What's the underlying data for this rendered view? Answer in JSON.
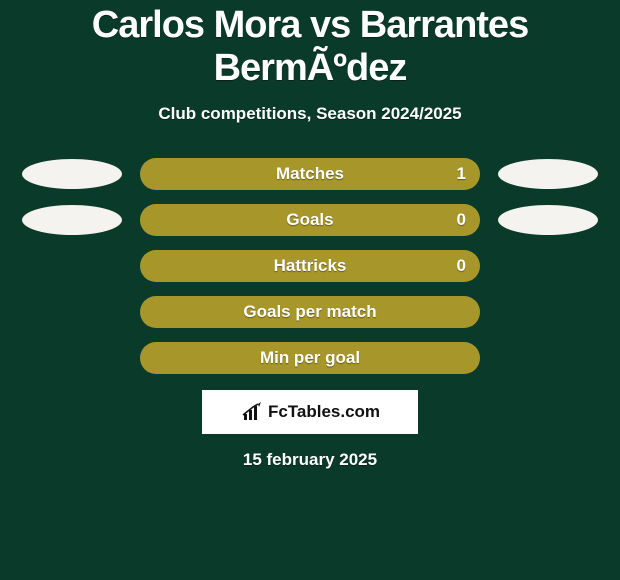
{
  "background_color": "#0a3a2a",
  "title": "Carlos Mora vs Barrantes BermÃºdez",
  "subtitle": "Club competitions, Season 2024/2025",
  "date": "15 february 2025",
  "logo_text": "FcTables.com",
  "oval_color": "#f4f3ef",
  "rows": [
    {
      "label": "Matches",
      "value_right": "1",
      "bar_color": "#a7972b",
      "show_left_oval": true,
      "show_right_oval": true,
      "show_value": true
    },
    {
      "label": "Goals",
      "value_right": "0",
      "bar_color": "#a7972b",
      "show_left_oval": true,
      "show_right_oval": true,
      "show_value": true
    },
    {
      "label": "Hattricks",
      "value_right": "0",
      "bar_color": "#a7972b",
      "show_left_oval": false,
      "show_right_oval": false,
      "show_value": true
    },
    {
      "label": "Goals per match",
      "value_right": "",
      "bar_color": "#a7972b",
      "show_left_oval": false,
      "show_right_oval": false,
      "show_value": false
    },
    {
      "label": "Min per goal",
      "value_right": "",
      "bar_color": "#a7972b",
      "show_left_oval": false,
      "show_right_oval": false,
      "show_value": false
    }
  ]
}
